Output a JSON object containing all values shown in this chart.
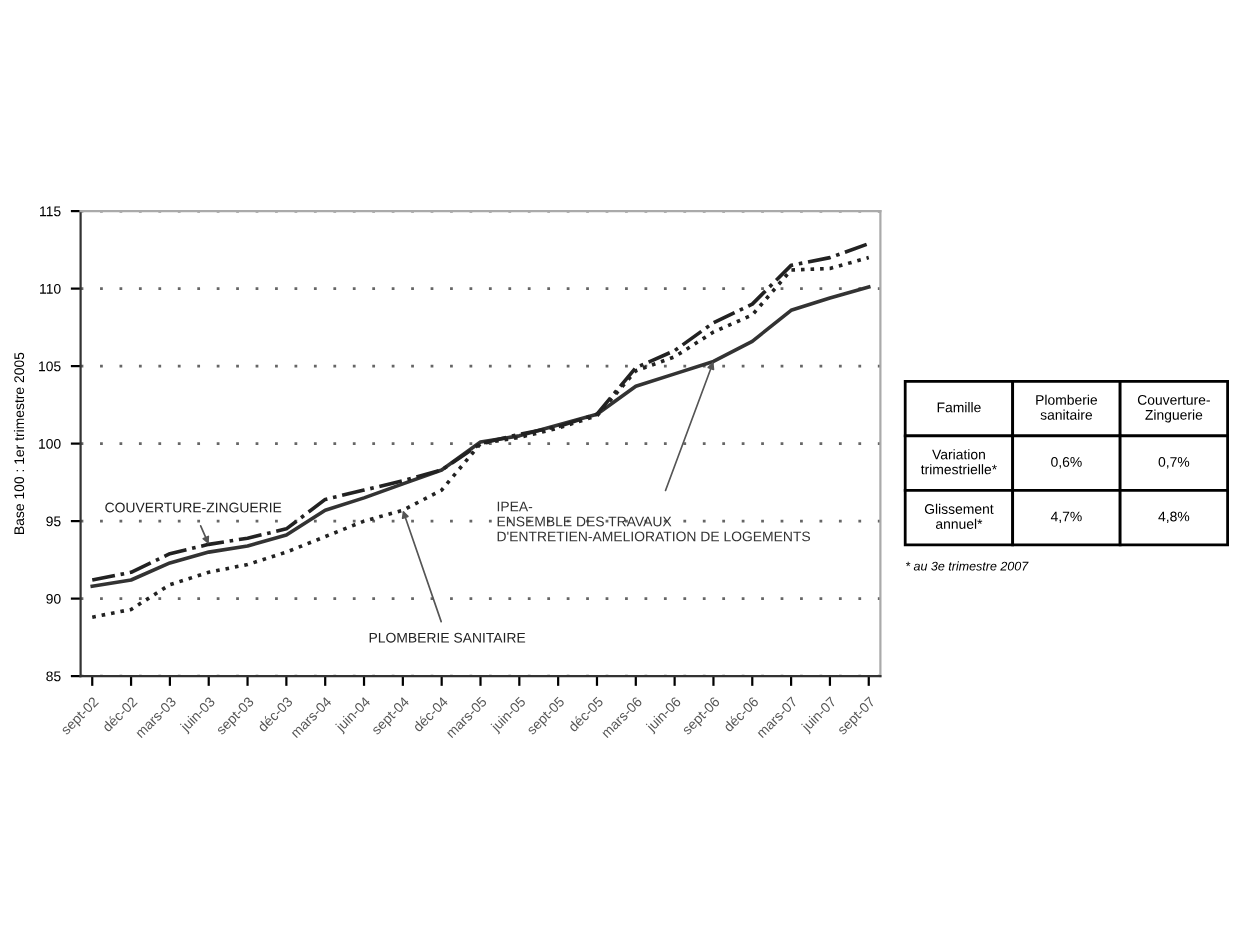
{
  "chart_data": [
    {
      "type": "line",
      "ylabel": "Base 100 : 1er trimestre 2005",
      "categories": [
        "sept-02",
        "déc-02",
        "mars-03",
        "juin-03",
        "sept-03",
        "déc-03",
        "mars-04",
        "juin-04",
        "sept-04",
        "déc-04",
        "mars-05",
        "juin-05",
        "sept-05",
        "déc-05",
        "mars-06",
        "juin-06",
        "sept-06",
        "déc-06",
        "mars-07",
        "juin-07",
        "sept-07"
      ],
      "series": [
        {
          "name": "IPEA-\nENSEMBLE DES TRAVAUX\nD'ENTRETIEN-AMELIORATION DE LOGEMENTS",
          "color": "#333333",
          "line_style": "solid",
          "values": [
            90.8,
            91.2,
            92.3,
            93.0,
            93.4,
            94.1,
            95.7,
            96.5,
            97.4,
            98.3,
            100.1,
            100.5,
            101.2,
            101.9,
            103.7,
            104.5,
            105.3,
            106.6,
            108.6,
            109.4,
            110.1
          ]
        },
        {
          "name": "COUVERTURE-ZINGUERIE",
          "color": "#222222",
          "line_style": "dashdot",
          "values": [
            91.2,
            91.7,
            92.9,
            93.5,
            93.9,
            94.5,
            96.4,
            97.0,
            97.6,
            98.3,
            100.0,
            100.6,
            101.1,
            101.9,
            104.9,
            106.0,
            107.8,
            109.0,
            111.5,
            112.0,
            112.9
          ]
        },
        {
          "name": "PLOMBERIE SANITAIRE",
          "color": "#222222",
          "line_style": "dotted",
          "values": [
            88.8,
            89.3,
            90.9,
            91.7,
            92.2,
            93.0,
            94.0,
            95.0,
            95.7,
            97.0,
            100.0,
            100.4,
            101.0,
            101.8,
            104.7,
            105.6,
            107.2,
            108.3,
            111.2,
            111.3,
            112.0
          ]
        }
      ],
      "ylim": [
        85,
        115
      ],
      "yticks": [
        85,
        90,
        95,
        100,
        105,
        110,
        115
      ],
      "grid": "y",
      "legend": false
    },
    {
      "type": "other",
      "ylabel": "Famille",
      "categories": [
        "Plomberie\nsanitaire",
        "Couverture-\nZinguerie"
      ],
      "y_categories": [
        "Variation\ntrimestrielle*",
        "Glissement\nannuel*"
      ],
      "cell_labels": [
        [
          "0,6%",
          "0,7%"
        ],
        [
          "4,7%",
          "4,8%"
        ]
      ],
      "annotations": [
        "* au 3e trimestre 2007"
      ]
    }
  ]
}
